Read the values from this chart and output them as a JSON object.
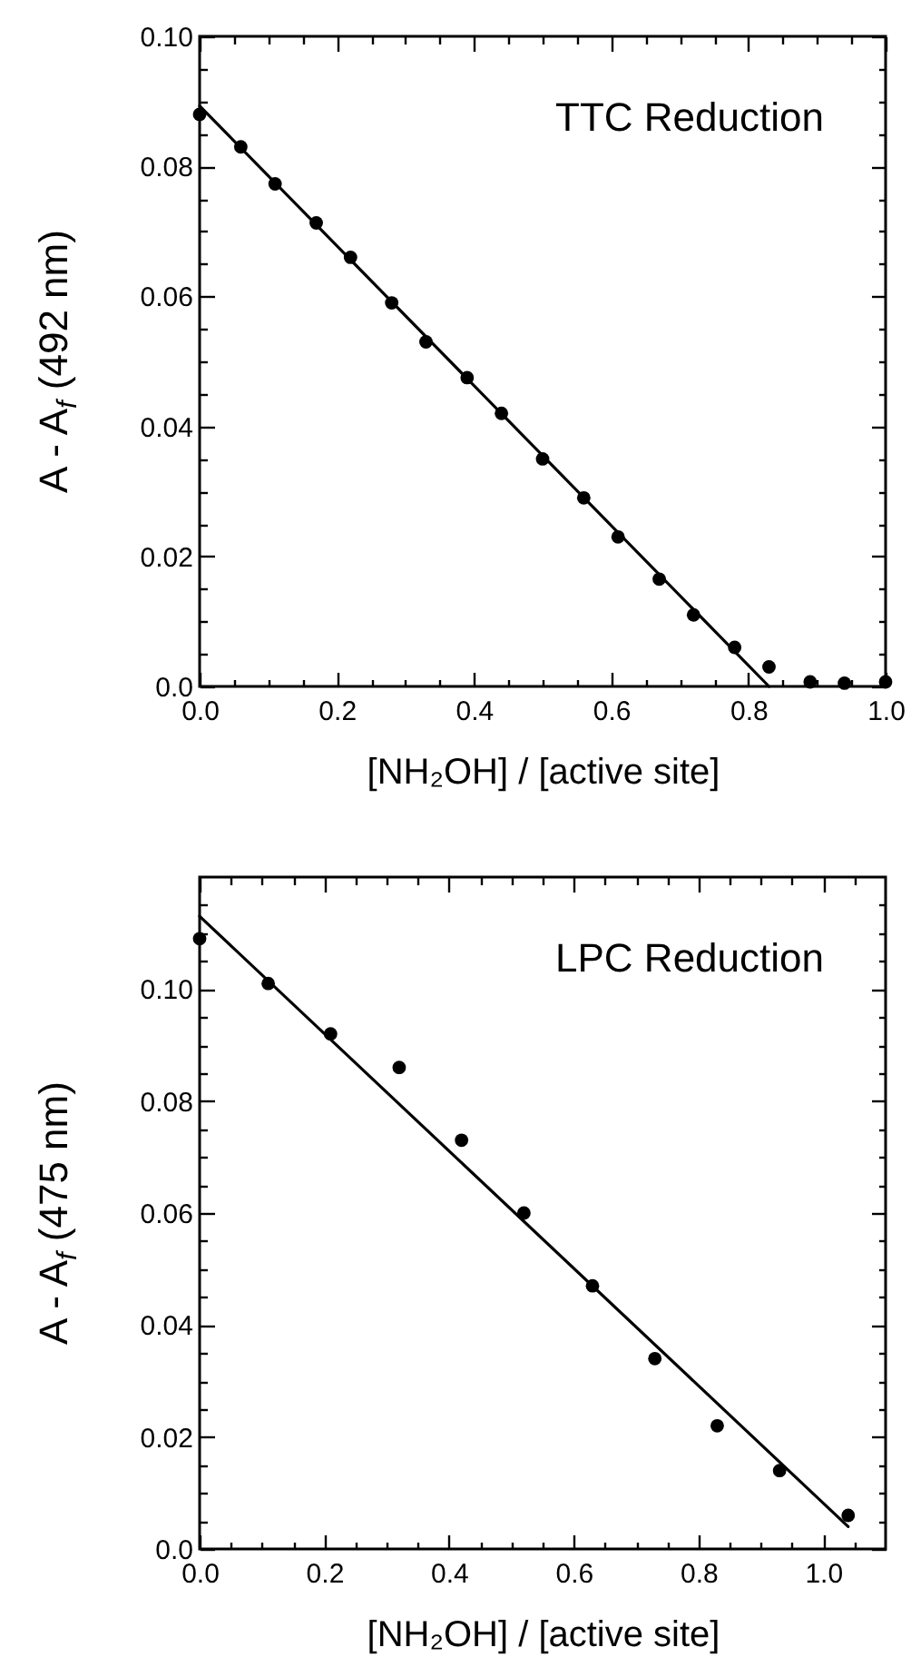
{
  "chart_data": [
    {
      "type": "scatter",
      "xlabel": "[NH₂OH] / [active site]",
      "ylabel": "A  -  A$_{f}$ (492 nm)",
      "annotations": [
        "TTC Reduction"
      ],
      "xlim": [
        0,
        1
      ],
      "ylim": [
        0,
        0.1
      ],
      "xticks": [
        {
          "value": 0,
          "label": "0.0"
        },
        {
          "value": 0.05,
          "label": null
        },
        {
          "value": 0.1,
          "label": null
        },
        {
          "value": 0.15,
          "label": null
        },
        0.2,
        {
          "value": 0.25,
          "label": null
        },
        {
          "value": 0.3,
          "label": null
        },
        {
          "value": 0.35,
          "label": null
        },
        0.4,
        {
          "value": 0.45,
          "label": null
        },
        {
          "value": 0.5,
          "label": null
        },
        {
          "value": 0.55,
          "label": null
        },
        0.6,
        {
          "value": 0.65,
          "label": null
        },
        {
          "value": 0.7,
          "label": null
        },
        {
          "value": 0.75,
          "label": null
        },
        0.8,
        {
          "value": 0.85,
          "label": null
        },
        {
          "value": 0.9,
          "label": null
        },
        {
          "value": 0.95,
          "label": null
        },
        {
          "value": 1,
          "label": "1.0"
        }
      ],
      "yticks": [
        {
          "value": 0,
          "label": "0.0"
        },
        {
          "value": 0.005,
          "label": null
        },
        {
          "value": 0.01,
          "label": null
        },
        {
          "value": 0.015,
          "label": null
        },
        0.02,
        {
          "value": 0.025,
          "label": null
        },
        {
          "value": 0.03,
          "label": null
        },
        {
          "value": 0.035,
          "label": null
        },
        0.04,
        {
          "value": 0.045,
          "label": null
        },
        {
          "value": 0.05,
          "label": null
        },
        {
          "value": 0.055,
          "label": null
        },
        0.06,
        {
          "value": 0.065,
          "label": null
        },
        {
          "value": 0.07,
          "label": null
        },
        {
          "value": 0.075,
          "label": null
        },
        0.08,
        {
          "value": 0.085,
          "label": null
        },
        {
          "value": 0.09,
          "label": null
        },
        {
          "value": 0.095,
          "label": null
        },
        {
          "value": 0.1,
          "label": "0.10"
        }
      ],
      "series": [
        {
          "marker": "circle",
          "color": "#000000",
          "x": [
            0,
            0.06,
            0.11,
            0.17,
            0.22,
            0.28,
            0.33,
            0.39,
            0.44,
            0.5,
            0.56,
            0.61,
            0.67,
            0.72,
            0.78,
            0.83,
            0.89,
            0.94,
            1.0
          ],
          "values": [
            0.088,
            0.083,
            0.0773,
            0.0713,
            0.066,
            0.059,
            0.053,
            0.0475,
            0.042,
            0.035,
            0.029,
            0.023,
            0.0165,
            0.011,
            0.006,
            0.003,
            0.0007,
            0.0005,
            0.0007
          ]
        },
        {
          "type": "line",
          "color": "#000000",
          "x": [
            0,
            0.83
          ],
          "values": [
            0.0893,
            0
          ]
        }
      ]
    },
    {
      "type": "scatter",
      "xlabel": "[NH₂OH] / [active site]",
      "ylabel": "A  -  A$_{f}$ (475 nm)",
      "annotations": [
        "LPC Reduction"
      ],
      "xlim": [
        0,
        1.1
      ],
      "ylim": [
        0,
        0.12
      ],
      "xticks": [
        {
          "value": 0,
          "label": "0.0"
        },
        {
          "value": 0.05,
          "label": null
        },
        {
          "value": 0.1,
          "label": null
        },
        {
          "value": 0.15,
          "label": null
        },
        0.2,
        {
          "value": 0.25,
          "label": null
        },
        {
          "value": 0.3,
          "label": null
        },
        {
          "value": 0.35,
          "label": null
        },
        0.4,
        {
          "value": 0.45,
          "label": null
        },
        {
          "value": 0.5,
          "label": null
        },
        {
          "value": 0.55,
          "label": null
        },
        0.6,
        {
          "value": 0.65,
          "label": null
        },
        {
          "value": 0.7,
          "label": null
        },
        {
          "value": 0.75,
          "label": null
        },
        0.8,
        {
          "value": 0.85,
          "label": null
        },
        {
          "value": 0.9,
          "label": null
        },
        {
          "value": 0.95,
          "label": null
        },
        {
          "value": 1,
          "label": "1.0"
        },
        {
          "value": 1.05,
          "label": null
        }
      ],
      "yticks": [
        {
          "value": 0,
          "label": "0.0"
        },
        {
          "value": 0.005,
          "label": null
        },
        {
          "value": 0.01,
          "label": null
        },
        {
          "value": 0.015,
          "label": null
        },
        0.02,
        {
          "value": 0.025,
          "label": null
        },
        {
          "value": 0.03,
          "label": null
        },
        {
          "value": 0.035,
          "label": null
        },
        0.04,
        {
          "value": 0.045,
          "label": null
        },
        {
          "value": 0.05,
          "label": null
        },
        {
          "value": 0.055,
          "label": null
        },
        0.06,
        {
          "value": 0.065,
          "label": null
        },
        {
          "value": 0.07,
          "label": null
        },
        {
          "value": 0.075,
          "label": null
        },
        0.08,
        {
          "value": 0.085,
          "label": null
        },
        {
          "value": 0.09,
          "label": null
        },
        {
          "value": 0.095,
          "label": null
        },
        {
          "value": 0.1,
          "label": "0.10"
        },
        {
          "value": 0.105,
          "label": null
        },
        {
          "value": 0.11,
          "label": null
        },
        {
          "value": 0.115,
          "label": null
        }
      ],
      "series": [
        {
          "marker": "circle",
          "color": "#000000",
          "x": [
            0.0,
            0.11,
            0.21,
            0.32,
            0.42,
            0.52,
            0.63,
            0.73,
            0.83,
            0.93,
            1.04
          ],
          "values": [
            0.109,
            0.101,
            0.092,
            0.086,
            0.073,
            0.06,
            0.047,
            0.034,
            0.022,
            0.014,
            0.006
          ]
        },
        {
          "type": "line",
          "color": "#000000",
          "x": [
            0,
            1.04
          ],
          "values": [
            0.113,
            0.004
          ]
        }
      ]
    }
  ]
}
